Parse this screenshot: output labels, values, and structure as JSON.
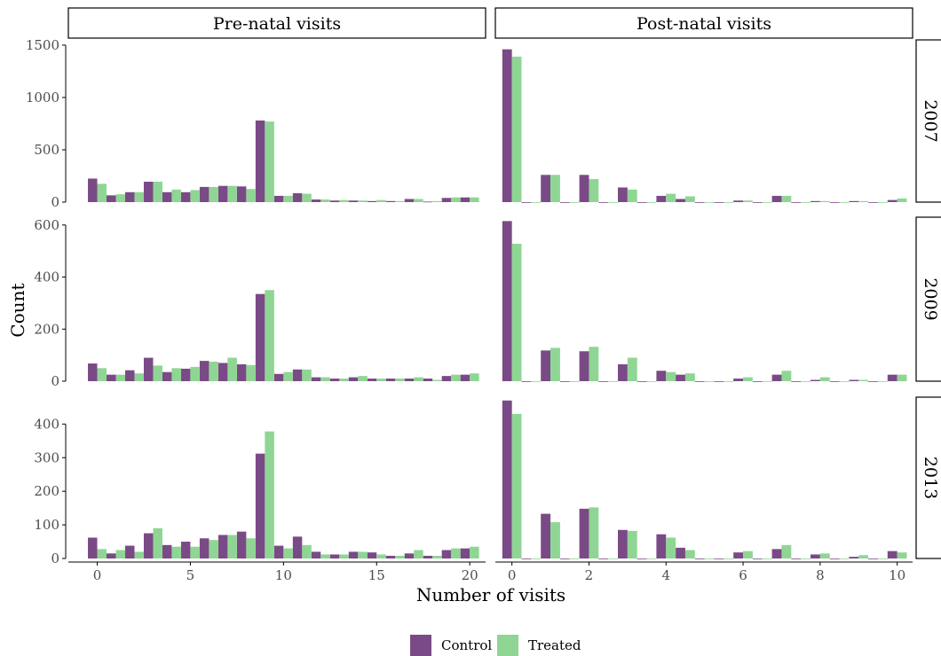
{
  "colors": {
    "Control": "#7a4a86",
    "Treated": "#8fd694",
    "axis": "#000000",
    "tick_text": "#4d4d4d"
  },
  "chart_data": {
    "type": "bar",
    "layout": "faceted grid (rows: year, columns: visit type)",
    "xlabel": "Number of visits",
    "ylabel": "Count",
    "column_facets": [
      "Pre-natal visits",
      "Post-natal visits"
    ],
    "row_facets": [
      "2007",
      "2009",
      "2013"
    ],
    "legend": {
      "position": "bottom",
      "entries": [
        "Control",
        "Treated"
      ]
    },
    "grid": false,
    "x_ticks": {
      "Pre-natal visits": [
        "0",
        "5",
        "10",
        "15",
        "20"
      ],
      "Post-natal visits": [
        "0",
        "2",
        "4",
        "6",
        "8",
        "10"
      ]
    },
    "y_axes": {
      "2007": {
        "ylim": [
          0,
          1550
        ],
        "ticks": [
          0,
          500,
          1000,
          1500
        ]
      },
      "2009": {
        "ylim": [
          0,
          630
        ],
        "ticks": [
          0,
          200,
          400,
          600
        ]
      },
      "2013": {
        "ylim": [
          0,
          480
        ],
        "ticks": [
          0,
          100,
          200,
          300,
          400
        ]
      }
    },
    "panels": [
      {
        "column": "Pre-natal visits",
        "row": "2007",
        "x_values": [
          0,
          1,
          2,
          3,
          4,
          5,
          6,
          7,
          8,
          9,
          10,
          11,
          12,
          13,
          14,
          15,
          16,
          17,
          18,
          19,
          20
        ],
        "series": [
          {
            "name": "Control",
            "values": [
              225,
              65,
              95,
              195,
              95,
              95,
              145,
              155,
              150,
              780,
              60,
              85,
              25,
              15,
              15,
              10,
              10,
              30,
              5,
              40,
              45
            ]
          },
          {
            "name": "Treated",
            "values": [
              175,
              75,
              95,
              195,
              120,
              115,
              145,
              155,
              125,
              770,
              60,
              80,
              25,
              20,
              15,
              20,
              10,
              30,
              10,
              45,
              45
            ]
          }
        ]
      },
      {
        "column": "Post-natal visits",
        "row": "2007",
        "x_values": [
          0,
          0.5,
          1,
          1.5,
          2,
          2.5,
          3,
          3.5,
          4,
          4.5,
          5,
          5.5,
          6,
          6.5,
          7,
          7.5,
          8,
          8.5,
          9,
          9.5,
          10
        ],
        "series": [
          {
            "name": "Control",
            "values": [
              1460,
              0,
              260,
              0,
              260,
              0,
              140,
              0,
              60,
              30,
              0,
              0,
              15,
              0,
              60,
              0,
              10,
              0,
              10,
              0,
              20
            ]
          },
          {
            "name": "Treated",
            "values": [
              1390,
              0,
              260,
              0,
              220,
              0,
              120,
              0,
              80,
              55,
              0,
              0,
              15,
              0,
              60,
              0,
              10,
              0,
              10,
              0,
              35
            ]
          }
        ]
      },
      {
        "column": "Pre-natal visits",
        "row": "2009",
        "x_values": [
          0,
          1,
          2,
          3,
          4,
          5,
          6,
          7,
          8,
          9,
          10,
          11,
          12,
          13,
          14,
          15,
          16,
          17,
          18,
          19,
          20
        ],
        "series": [
          {
            "name": "Control",
            "values": [
              68,
              25,
              42,
              90,
              35,
              48,
              78,
              70,
              65,
              335,
              28,
              45,
              15,
              10,
              15,
              10,
              10,
              10,
              10,
              20,
              25
            ]
          },
          {
            "name": "Treated",
            "values": [
              50,
              25,
              30,
              60,
              50,
              55,
              75,
              90,
              62,
              350,
              35,
              45,
              15,
              10,
              20,
              10,
              10,
              15,
              5,
              25,
              30
            ]
          }
        ]
      },
      {
        "column": "Post-natal visits",
        "row": "2009",
        "x_values": [
          0,
          0.5,
          1,
          1.5,
          2,
          2.5,
          3,
          3.5,
          4,
          4.5,
          5,
          5.5,
          6,
          6.5,
          7,
          7.5,
          8,
          8.5,
          9,
          9.5,
          10
        ],
        "series": [
          {
            "name": "Control",
            "values": [
              615,
              0,
              118,
              0,
              115,
              0,
              65,
              0,
              40,
              25,
              0,
              0,
              10,
              0,
              25,
              0,
              5,
              0,
              5,
              0,
              25
            ]
          },
          {
            "name": "Treated",
            "values": [
              528,
              0,
              128,
              0,
              132,
              0,
              90,
              0,
              35,
              30,
              0,
              0,
              15,
              0,
              40,
              0,
              15,
              0,
              5,
              0,
              25
            ]
          }
        ]
      },
      {
        "column": "Pre-natal visits",
        "row": "2013",
        "x_values": [
          0,
          1,
          2,
          3,
          4,
          5,
          6,
          7,
          8,
          9,
          10,
          11,
          12,
          13,
          14,
          15,
          16,
          17,
          18,
          19,
          20
        ],
        "series": [
          {
            "name": "Control",
            "values": [
              62,
              15,
              38,
              75,
              40,
              50,
              60,
              70,
              80,
              312,
              38,
              65,
              20,
              12,
              20,
              18,
              8,
              15,
              8,
              25,
              30
            ]
          },
          {
            "name": "Treated",
            "values": [
              28,
              25,
              20,
              90,
              35,
              35,
              55,
              70,
              60,
              378,
              30,
              40,
              12,
              12,
              20,
              12,
              8,
              25,
              8,
              30,
              35
            ]
          }
        ]
      },
      {
        "column": "Post-natal visits",
        "row": "2013",
        "x_values": [
          0,
          0.5,
          1,
          1.5,
          2,
          2.5,
          3,
          3.5,
          4,
          4.5,
          5,
          5.5,
          6,
          6.5,
          7,
          7.5,
          8,
          8.5,
          9,
          9.5,
          10
        ],
        "series": [
          {
            "name": "Control",
            "values": [
              470,
              0,
              133,
              0,
              148,
              0,
              85,
              0,
              72,
              32,
              0,
              0,
              18,
              0,
              28,
              0,
              12,
              0,
              5,
              0,
              22
            ]
          },
          {
            "name": "Treated",
            "values": [
              430,
              0,
              108,
              0,
              152,
              0,
              82,
              0,
              62,
              25,
              0,
              0,
              22,
              0,
              40,
              0,
              15,
              0,
              10,
              0,
              18
            ]
          }
        ]
      }
    ]
  }
}
